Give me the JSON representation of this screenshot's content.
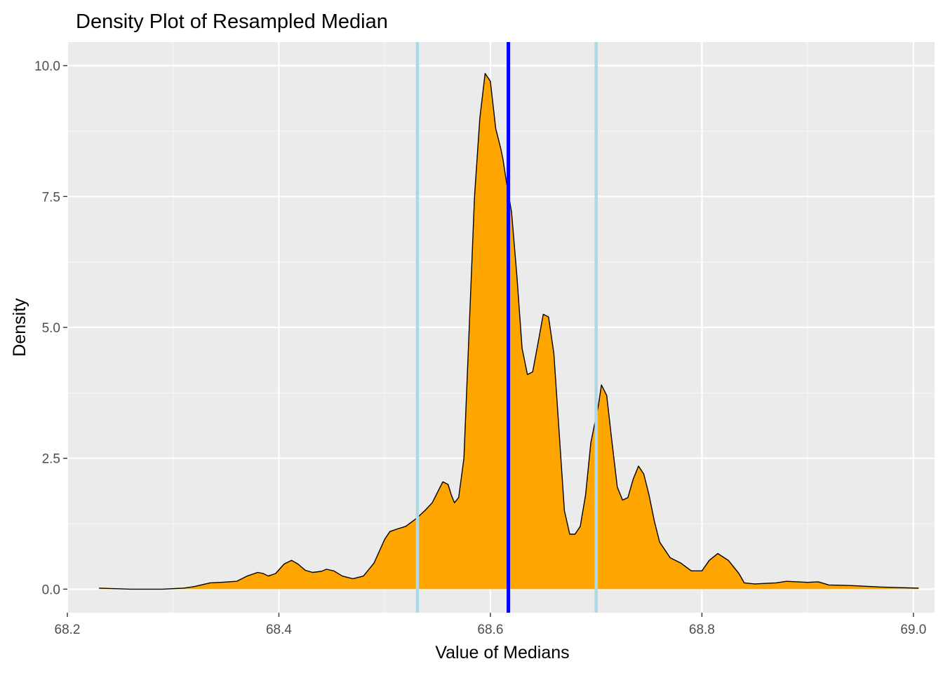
{
  "colors": {
    "panel_background": "#EBEBEB",
    "grid_major": "#FFFFFF",
    "grid_minor": "#F5F5F5",
    "density_fill": "#FFA500",
    "density_outline": "#000000",
    "median_line": "#0000FF",
    "ci_line": "#ADD8E6",
    "tick_color": "#333333"
  },
  "chart_data": {
    "type": "area",
    "title": "Density Plot of Resampled Median",
    "xlabel": "Value of Medians",
    "ylabel": "Density",
    "xlim": [
      68.2,
      69.02
    ],
    "ylim": [
      -0.45,
      10.45
    ],
    "x_ticks": [
      68.2,
      68.4,
      68.6,
      68.8,
      69.0
    ],
    "x_tick_labels": [
      "68.2",
      "68.4",
      "68.6",
      "68.8",
      "69.0"
    ],
    "y_ticks": [
      0,
      2.5,
      5,
      7.5,
      10
    ],
    "y_tick_labels": [
      "0.0",
      "2.5",
      "5.0",
      "7.5",
      "10.0"
    ],
    "grid": true,
    "legend": "none",
    "series": [
      {
        "x": [
          68.23,
          68.26,
          68.29,
          68.31,
          68.32,
          68.335,
          68.345,
          68.36,
          68.37,
          68.38,
          68.385,
          68.39,
          68.397,
          68.405,
          68.412,
          68.418,
          68.425,
          68.432,
          68.44,
          68.445,
          68.452,
          68.46,
          68.47,
          68.48,
          68.49,
          68.5,
          68.505,
          68.512,
          68.52,
          68.53,
          68.538,
          68.545,
          68.55,
          68.555,
          68.56,
          68.563,
          68.566,
          68.57,
          68.575,
          68.58,
          68.585,
          68.59,
          68.595,
          68.6,
          68.605,
          68.61,
          68.612,
          68.615,
          68.62,
          68.625,
          68.63,
          68.635,
          68.64,
          68.645,
          68.65,
          68.655,
          68.66,
          68.665,
          68.67,
          68.675,
          68.68,
          68.685,
          68.69,
          68.695,
          68.7,
          68.702,
          68.705,
          68.71,
          68.715,
          68.72,
          68.725,
          68.73,
          68.735,
          68.74,
          68.745,
          68.75,
          68.755,
          68.76,
          68.77,
          68.78,
          68.79,
          68.8,
          68.807,
          68.815,
          68.825,
          68.835,
          68.84,
          68.85,
          68.87,
          68.88,
          68.9,
          68.91,
          68.92,
          68.94,
          68.97,
          69.005
        ],
        "y": [
          0.02,
          0.0,
          0.0,
          0.02,
          0.05,
          0.12,
          0.13,
          0.15,
          0.25,
          0.32,
          0.3,
          0.25,
          0.3,
          0.48,
          0.55,
          0.48,
          0.36,
          0.32,
          0.34,
          0.38,
          0.35,
          0.25,
          0.2,
          0.25,
          0.5,
          0.95,
          1.1,
          1.15,
          1.2,
          1.35,
          1.5,
          1.65,
          1.85,
          2.05,
          2.0,
          1.8,
          1.65,
          1.75,
          2.5,
          5.0,
          7.5,
          9.0,
          9.85,
          9.7,
          8.8,
          8.4,
          8.2,
          7.8,
          7.2,
          6.0,
          4.6,
          4.1,
          4.15,
          4.7,
          5.25,
          5.2,
          4.5,
          3.0,
          1.5,
          1.05,
          1.05,
          1.2,
          1.8,
          2.8,
          3.3,
          3.5,
          3.9,
          3.7,
          2.8,
          1.95,
          1.7,
          1.75,
          2.1,
          2.35,
          2.2,
          1.8,
          1.3,
          0.9,
          0.6,
          0.5,
          0.35,
          0.35,
          0.55,
          0.68,
          0.55,
          0.3,
          0.12,
          0.1,
          0.12,
          0.15,
          0.13,
          0.14,
          0.08,
          0.07,
          0.04,
          0.02
        ]
      }
    ],
    "vlines": [
      {
        "x": 68.531,
        "color": "#ADD8E6"
      },
      {
        "x": 68.617,
        "color": "#0000FF"
      },
      {
        "x": 68.7,
        "color": "#ADD8E6"
      }
    ]
  }
}
